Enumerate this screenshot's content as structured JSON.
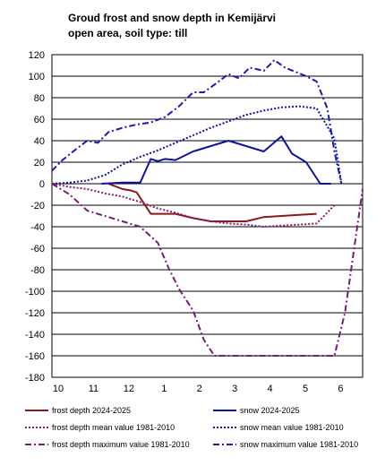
{
  "header": {
    "title_line1": "Groud frost and snow depth in Kemijärvi",
    "title_line2": "open area, soil type: till"
  },
  "chart_data": {
    "type": "line",
    "title": "Groud frost and snow depth in Kemijärvi",
    "subtitle": "open area, soil type: till",
    "xlabel": "",
    "ylabel": "",
    "ylim": [
      -180,
      120
    ],
    "y_ticks": [
      120,
      100,
      80,
      60,
      40,
      20,
      0,
      -20,
      -40,
      -60,
      -80,
      -100,
      -120,
      -140,
      -160,
      -180
    ],
    "x_ticks": [
      "10",
      "11",
      "12",
      "1",
      "2",
      "3",
      "4",
      "5",
      "6"
    ],
    "x_note": "x values are months of the season (10 = October ... 6 = June); fractional values are positions within a month",
    "xlim": [
      10,
      18.8
    ],
    "grid": "horizontal",
    "legend_position": "bottom",
    "series": [
      {
        "name": "frost depth 2024-2025",
        "color": "#8b1a1a",
        "style": "solid",
        "width": 2,
        "x": [
          11.6,
          12.0,
          12.2,
          12.4,
          12.8,
          13.5,
          14.0,
          14.5,
          15.0,
          15.5,
          16.0,
          16.5,
          17.0,
          17.5
        ],
        "values": [
          0,
          -5,
          -6,
          -8,
          -28,
          -28,
          -32,
          -35,
          -35,
          -35,
          -31,
          -30,
          -29,
          -28
        ]
      },
      {
        "name": "snow 2024-2025",
        "color": "#0a14a0",
        "style": "solid",
        "width": 2,
        "x": [
          11.4,
          12.0,
          12.5,
          12.8,
          13.0,
          13.2,
          13.5,
          14.0,
          15.0,
          15.5,
          16.0,
          16.5,
          16.8,
          17.2,
          17.6,
          17.9
        ],
        "values": [
          0,
          1,
          1,
          23,
          21,
          23,
          22,
          30,
          40,
          35,
          30,
          44,
          28,
          20,
          0,
          0
        ]
      },
      {
        "name": "frost depth mean value 1981-2010",
        "color": "#8b1a6b",
        "style": "dotted",
        "width": 2,
        "x": [
          10.0,
          10.5,
          11.0,
          11.5,
          12.0,
          12.5,
          13.0,
          13.5,
          14.0,
          14.5,
          15.0,
          15.5,
          16.0,
          16.5,
          17.0,
          17.5,
          18.0
        ],
        "values": [
          0,
          -3,
          -5,
          -9,
          -12,
          -17,
          -23,
          -27,
          -32,
          -35,
          -37,
          -38,
          -40,
          -39,
          -38,
          -37,
          -20
        ]
      },
      {
        "name": "snow mean value 1981-2010",
        "color": "#0a14a0",
        "style": "dotted",
        "width": 2,
        "x": [
          10.0,
          10.5,
          11.0,
          11.5,
          12.0,
          12.5,
          13.0,
          13.5,
          14.0,
          14.5,
          15.0,
          15.5,
          16.0,
          16.5,
          17.0,
          17.5,
          18.0,
          18.2
        ],
        "values": [
          0,
          1,
          3,
          8,
          18,
          25,
          31,
          38,
          45,
          52,
          58,
          64,
          68,
          71,
          72,
          70,
          42,
          0
        ]
      },
      {
        "name": "frost depth maximum value 1981-2010",
        "color": "#7a1a7a",
        "style": "dashdot",
        "width": 2,
        "x": [
          10.0,
          10.5,
          11.0,
          11.5,
          12.0,
          12.5,
          13.0,
          13.3,
          13.6,
          14.0,
          14.3,
          14.6,
          15.0,
          15.5,
          16.0,
          16.5,
          17.0,
          17.5,
          18.0,
          18.3,
          18.8
        ],
        "values": [
          0,
          -10,
          -25,
          -30,
          -35,
          -40,
          -55,
          -78,
          -98,
          -118,
          -145,
          -160,
          -160,
          -160,
          -160,
          -160,
          -160,
          -160,
          -160,
          -120,
          -5
        ]
      },
      {
        "name": "snow maximum value 1981-2010",
        "color": "#1a1ab0",
        "style": "dashdot",
        "width": 2,
        "x": [
          10.0,
          10.3,
          10.6,
          11.0,
          11.3,
          11.6,
          12.0,
          12.4,
          12.8,
          13.2,
          13.6,
          14.0,
          14.3,
          14.6,
          15.0,
          15.3,
          15.6,
          16.0,
          16.3,
          16.6,
          16.9,
          17.2,
          17.5,
          17.8,
          18.0,
          18.2
        ],
        "values": [
          12,
          22,
          30,
          40,
          38,
          48,
          52,
          55,
          57,
          62,
          72,
          85,
          85,
          92,
          102,
          98,
          108,
          105,
          115,
          108,
          104,
          100,
          95,
          70,
          30,
          0
        ]
      }
    ]
  }
}
